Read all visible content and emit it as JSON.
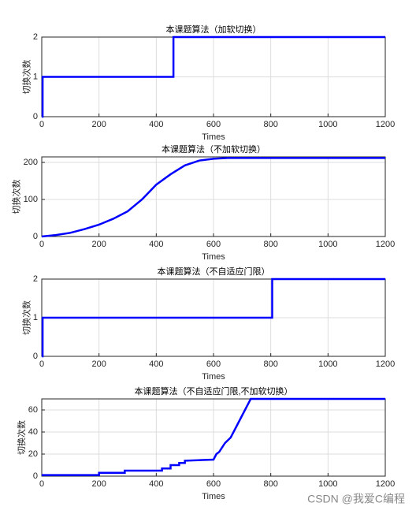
{
  "chart_data": [
    {
      "type": "line",
      "title": "本课题算法（加软切换）",
      "xlabel": "Times",
      "ylabel": "切换次数",
      "x": [
        0,
        3,
        3,
        460,
        460,
        1200
      ],
      "values": [
        0,
        0,
        1,
        1,
        2,
        2
      ],
      "color": "#0000ff",
      "xlim": [
        0,
        1200
      ],
      "xticks": [
        0,
        200,
        400,
        600,
        800,
        1000,
        1200
      ],
      "ylim": [
        0,
        2
      ],
      "yticks": [
        0,
        1,
        2
      ],
      "grid": true
    },
    {
      "type": "line",
      "title": "本课题算法（不加软切换）",
      "xlabel": "Times",
      "ylabel": "切换次数",
      "x": [
        0,
        50,
        100,
        150,
        200,
        250,
        300,
        350,
        400,
        450,
        500,
        550,
        600,
        650,
        1200
      ],
      "values": [
        0,
        4,
        10,
        20,
        32,
        48,
        68,
        100,
        140,
        168,
        192,
        205,
        210,
        212,
        212
      ],
      "color": "#0000ff",
      "xlim": [
        0,
        1200
      ],
      "xticks": [
        0,
        200,
        400,
        600,
        800,
        1000,
        1200
      ],
      "ylim": [
        0,
        215
      ],
      "yticks": [
        0,
        100,
        200
      ],
      "grid": true
    },
    {
      "type": "line",
      "title": "本课题算法（不自适应门限）",
      "xlabel": "Times",
      "ylabel": "切换次数",
      "x": [
        0,
        3,
        3,
        805,
        805,
        1200
      ],
      "values": [
        0,
        0,
        1,
        1,
        2,
        2
      ],
      "color": "#0000ff",
      "xlim": [
        0,
        1200
      ],
      "xticks": [
        0,
        200,
        400,
        600,
        800,
        1000,
        1200
      ],
      "ylim": [
        0,
        2
      ],
      "yticks": [
        0,
        1,
        2
      ],
      "grid": true
    },
    {
      "type": "line",
      "title": "本课题算法（不自适应门限,不加软切换）",
      "xlabel": "Times",
      "ylabel": "切换次数",
      "x": [
        0,
        200,
        200,
        290,
        290,
        420,
        420,
        450,
        450,
        480,
        480,
        500,
        500,
        600,
        610,
        620,
        640,
        660,
        680,
        700,
        720,
        730,
        1200
      ],
      "values": [
        1,
        1,
        3,
        3,
        5,
        5,
        7,
        7,
        10,
        10,
        12,
        12,
        14,
        15,
        20,
        22,
        30,
        35,
        45,
        55,
        65,
        70,
        70
      ],
      "color": "#0000ff",
      "xlim": [
        0,
        1200
      ],
      "xticks": [
        0,
        200,
        400,
        600,
        800,
        1000,
        1200
      ],
      "ylim": [
        0,
        70
      ],
      "yticks": [
        0,
        20,
        40,
        60
      ],
      "grid": true
    }
  ],
  "watermark": "CSDN @我爱C编程"
}
